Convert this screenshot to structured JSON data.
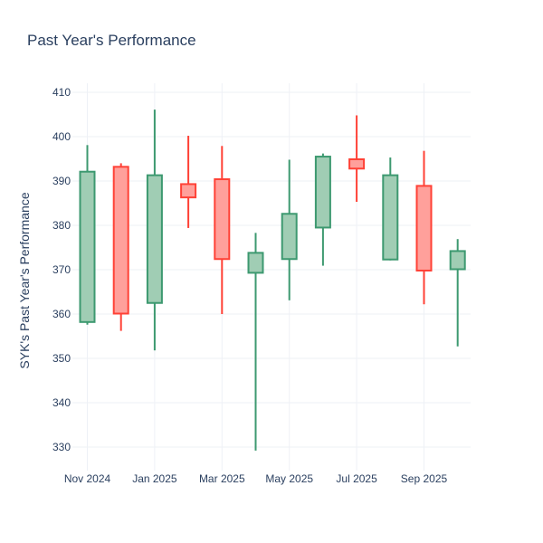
{
  "chart_data": {
    "type": "candlestick",
    "title": "Past Year's Performance",
    "xlabel": "",
    "ylabel": "SYK's Past Year's Performance",
    "ylim": [
      325,
      410
    ],
    "y_ticks": [
      330,
      340,
      350,
      360,
      370,
      380,
      390,
      400,
      410
    ],
    "x_ticks": [
      {
        "label": "Nov 2024",
        "month_index": 0
      },
      {
        "label": "Jan 2025",
        "month_index": 2
      },
      {
        "label": "Mar 2025",
        "month_index": 4
      },
      {
        "label": "May 2025",
        "month_index": 6
      },
      {
        "label": "Jul 2025",
        "month_index": 8
      },
      {
        "label": "Sep 2025",
        "month_index": 10
      }
    ],
    "grid": true,
    "colors": {
      "up_line": "#3d9970",
      "up_fill": "#a0cdb4",
      "down_line": "#ff4136",
      "down_fill": "#ffa09b",
      "grid": "#eef1f6",
      "text": "#2a3f5f"
    },
    "series": [
      {
        "period": "2024-11",
        "open": 358.2,
        "high": 398.1,
        "low": 357.6,
        "close": 392.1
      },
      {
        "period": "2024-12",
        "open": 393.2,
        "high": 394.0,
        "low": 356.2,
        "close": 360.1
      },
      {
        "period": "2025-01",
        "open": 362.5,
        "high": 406.1,
        "low": 351.8,
        "close": 391.3
      },
      {
        "period": "2025-02",
        "open": 389.3,
        "high": 400.2,
        "low": 379.4,
        "close": 386.3
      },
      {
        "period": "2025-03",
        "open": 390.4,
        "high": 397.9,
        "low": 360.0,
        "close": 372.4
      },
      {
        "period": "2025-04",
        "open": 369.3,
        "high": 378.3,
        "low": 329.2,
        "close": 373.8
      },
      {
        "period": "2025-05",
        "open": 372.4,
        "high": 394.8,
        "low": 363.1,
        "close": 382.6
      },
      {
        "period": "2025-06",
        "open": 379.5,
        "high": 396.2,
        "low": 370.9,
        "close": 395.5
      },
      {
        "period": "2025-07",
        "open": 394.9,
        "high": 404.8,
        "low": 385.3,
        "close": 392.8
      },
      {
        "period": "2025-08",
        "open": 372.3,
        "high": 395.3,
        "low": 372.1,
        "close": 391.3
      },
      {
        "period": "2025-09",
        "open": 388.9,
        "high": 396.8,
        "low": 362.2,
        "close": 369.8
      },
      {
        "period": "2025-10",
        "open": 370.1,
        "high": 376.9,
        "low": 352.7,
        "close": 374.2
      }
    ]
  }
}
